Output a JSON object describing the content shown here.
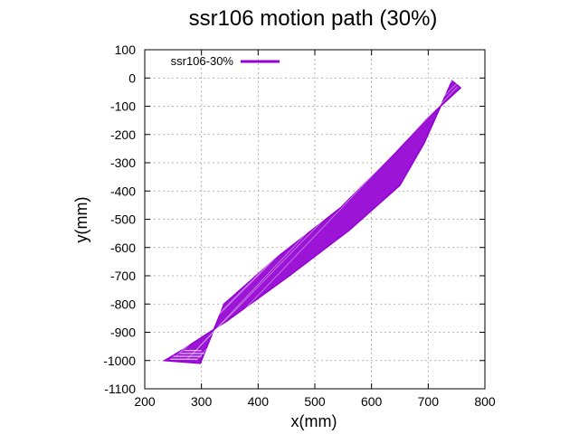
{
  "chart_data": {
    "type": "line",
    "title": "ssr106 motion path (30%)",
    "xlabel": "x(mm)",
    "ylabel": "y(mm)",
    "xlim": [
      200,
      800
    ],
    "ylim": [
      -1100,
      100
    ],
    "xticks": [
      200,
      300,
      400,
      500,
      600,
      700,
      800
    ],
    "yticks": [
      100,
      0,
      -100,
      -200,
      -300,
      -400,
      -500,
      -600,
      -700,
      -800,
      -900,
      -1000,
      -1100
    ],
    "grid": true,
    "legend_position": "top-left",
    "series": [
      {
        "name": "ssr106-30%",
        "color": "#9400d3",
        "outline": {
          "x": [
            235,
            268,
            345,
            455,
            560,
            650,
            693,
            742,
            757,
            700,
            640,
            545,
            430,
            340,
            298,
            235
          ],
          "y": [
            -1000,
            -960,
            -860,
            -700,
            -540,
            -380,
            -230,
            -10,
            -35,
            -140,
            -270,
            -460,
            -640,
            -800,
            -1010,
            -1000
          ]
        },
        "stroke_pairs": [
          {
            "x0": 255,
            "y0": -985,
            "x1": 745,
            "y1": -5
          },
          {
            "x0": 275,
            "y0": -995,
            "x1": 750,
            "y1": -20
          },
          {
            "x0": 290,
            "y0": -1000,
            "x1": 752,
            "y1": -30
          },
          {
            "x0": 265,
            "y0": -970,
            "x1": 735,
            "y1": -25
          },
          {
            "x0": 285,
            "y0": -975,
            "x1": 725,
            "y1": -40
          }
        ]
      }
    ]
  }
}
